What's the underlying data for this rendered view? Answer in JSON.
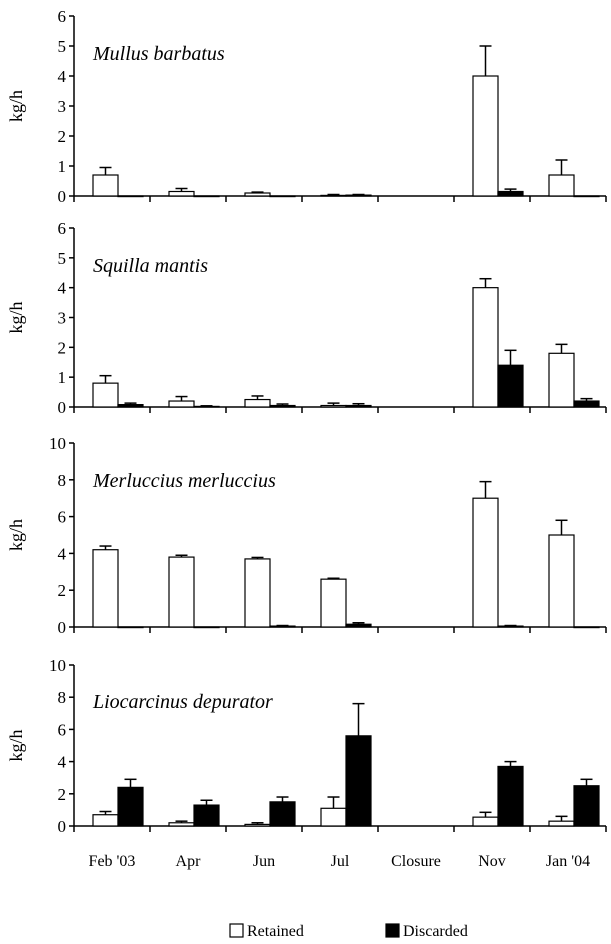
{
  "chart_data": {
    "type": "bar",
    "categories": [
      "Feb '03",
      "Apr",
      "Jun",
      "Jul",
      "Closure",
      "Nov",
      "Jan  '04"
    ],
    "legend": [
      "Retained",
      "Discarded"
    ],
    "colors": {
      "retained": "#ffffff",
      "discarded": "#000000"
    },
    "panels": [
      {
        "title": "Mullus barbatus",
        "ylabel": "kg/h",
        "ylim": [
          0,
          6
        ],
        "yticks": [
          0,
          1,
          2,
          3,
          4,
          5,
          6
        ],
        "series": [
          {
            "name": "Retained",
            "values": [
              0.7,
              0.15,
              0.1,
              0.02,
              null,
              4.0,
              0.7
            ],
            "errors": [
              0.25,
              0.1,
              0.03,
              0.03,
              null,
              1.0,
              0.5
            ]
          },
          {
            "name": "Discarded",
            "values": [
              0,
              0,
              0,
              0.03,
              null,
              0.15,
              0
            ],
            "errors": [
              0,
              0,
              0,
              0.02,
              null,
              0.08,
              0
            ]
          }
        ]
      },
      {
        "title": "Squilla mantis",
        "ylabel": "kg/h",
        "ylim": [
          0,
          6
        ],
        "yticks": [
          0,
          1,
          2,
          3,
          4,
          5,
          6
        ],
        "series": [
          {
            "name": "Retained",
            "values": [
              0.8,
              0.2,
              0.25,
              0.05,
              null,
              4.0,
              1.8
            ],
            "errors": [
              0.25,
              0.15,
              0.12,
              0.08,
              null,
              0.3,
              0.3
            ]
          },
          {
            "name": "Discarded",
            "values": [
              0.08,
              0.02,
              0.05,
              0.05,
              null,
              1.4,
              0.2
            ],
            "errors": [
              0.05,
              0.02,
              0.05,
              0.06,
              null,
              0.5,
              0.08
            ]
          }
        ]
      },
      {
        "title": "Merluccius  merluccius",
        "ylabel": "kg/h",
        "ylim": [
          0,
          10
        ],
        "yticks": [
          0,
          2,
          4,
          6,
          8,
          10
        ],
        "series": [
          {
            "name": "Retained",
            "values": [
              4.2,
              3.8,
              3.7,
              2.6,
              null,
              7.0,
              5.0
            ],
            "errors": [
              0.2,
              0.1,
              0.08,
              0.05,
              null,
              0.9,
              0.8
            ]
          },
          {
            "name": "Discarded",
            "values": [
              0,
              0,
              0.05,
              0.15,
              null,
              0.05,
              0
            ],
            "errors": [
              0,
              0,
              0.03,
              0.08,
              null,
              0.03,
              0
            ]
          }
        ]
      },
      {
        "title": "Liocarcinus  depurator",
        "ylabel": "kg/h",
        "ylim": [
          0,
          10
        ],
        "yticks": [
          0,
          2,
          4,
          6,
          8,
          10
        ],
        "series": [
          {
            "name": "Retained",
            "values": [
              0.7,
              0.2,
              0.1,
              1.1,
              null,
              0.55,
              0.3
            ],
            "errors": [
              0.2,
              0.1,
              0.1,
              0.7,
              null,
              0.3,
              0.3
            ]
          },
          {
            "name": "Discarded",
            "values": [
              2.4,
              1.3,
              1.5,
              5.6,
              null,
              3.7,
              2.5
            ],
            "errors": [
              0.5,
              0.3,
              0.3,
              2.0,
              null,
              0.3,
              0.4
            ]
          }
        ]
      }
    ]
  }
}
